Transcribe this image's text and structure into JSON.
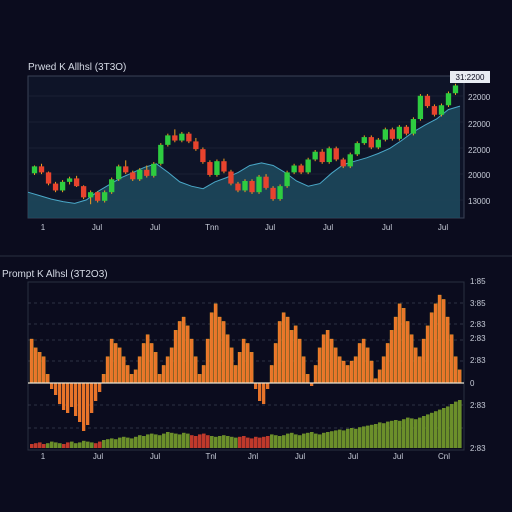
{
  "chart_data": [
    {
      "type": "candlestick",
      "title": "Prwed K Allhsl (3T3O)",
      "x_tick_labels": [
        "1",
        "Jul",
        "Jul",
        "Tnn",
        "Jul",
        "Jul",
        "Jul",
        "Jul"
      ],
      "y_tick_labels": [
        "3:2200",
        "22000",
        "22000",
        "22000",
        "20000",
        "13000"
      ],
      "current_price_label": "31:2200",
      "colors": {
        "up": "#2ecc40",
        "down": "#e8432e",
        "wick": "#f0a020",
        "area_fill": "#1d4a5e",
        "area_line": "#4aa8c8"
      },
      "area_series": [
        17000,
        16600,
        16200,
        15900,
        15700,
        16100,
        17100,
        17900,
        18700,
        19300,
        19900,
        20300,
        19300,
        18200,
        17700,
        17400,
        18200,
        18700,
        19300,
        20100,
        20400,
        20100,
        19300,
        18300,
        17700,
        18000,
        19200,
        20200,
        20600,
        21000,
        21500,
        22100,
        23000,
        24000,
        24800,
        25500,
        26600,
        27000
      ],
      "ohlc": [
        [
          19200,
          20100,
          19000,
          20000
        ],
        [
          20000,
          20300,
          19100,
          19300
        ],
        [
          19300,
          19400,
          17800,
          18000
        ],
        [
          18000,
          18200,
          17000,
          17200
        ],
        [
          17200,
          18400,
          17000,
          18200
        ],
        [
          18200,
          18800,
          17900,
          18600
        ],
        [
          18600,
          18900,
          17600,
          17700
        ],
        [
          17700,
          17800,
          16200,
          16400
        ],
        [
          16400,
          17200,
          15600,
          17000
        ],
        [
          17000,
          17100,
          15800,
          16000
        ],
        [
          16000,
          17200,
          15800,
          17000
        ],
        [
          17000,
          18700,
          16800,
          18500
        ],
        [
          18500,
          20200,
          18300,
          20000
        ],
        [
          20000,
          20700,
          19100,
          19300
        ],
        [
          19300,
          19500,
          18300,
          18500
        ],
        [
          18500,
          19800,
          18300,
          19600
        ],
        [
          19600,
          20100,
          18700,
          18900
        ],
        [
          18900,
          20500,
          18700,
          20300
        ],
        [
          20300,
          22700,
          20100,
          22500
        ],
        [
          22500,
          23800,
          22300,
          23600
        ],
        [
          23600,
          24300,
          22800,
          23000
        ],
        [
          23000,
          24000,
          22800,
          23800
        ],
        [
          23800,
          24000,
          22700,
          22900
        ],
        [
          22900,
          23300,
          21800,
          22000
        ],
        [
          22000,
          22200,
          20300,
          20500
        ],
        [
          20500,
          20700,
          18800,
          19000
        ],
        [
          19000,
          20800,
          18800,
          20600
        ],
        [
          20600,
          20900,
          19200,
          19400
        ],
        [
          19400,
          19600,
          17800,
          18000
        ],
        [
          18000,
          18200,
          17000,
          17200
        ],
        [
          17200,
          18500,
          17000,
          18300
        ],
        [
          18300,
          18500,
          16800,
          17000
        ],
        [
          17000,
          19000,
          16800,
          18800
        ],
        [
          18800,
          19100,
          17300,
          17500
        ],
        [
          17500,
          17700,
          16000,
          16200
        ],
        [
          16200,
          17900,
          16000,
          17700
        ],
        [
          17700,
          19500,
          17500,
          19300
        ],
        [
          19300,
          20300,
          19100,
          20100
        ],
        [
          20100,
          20300,
          19100,
          19300
        ],
        [
          19300,
          21000,
          19100,
          20800
        ],
        [
          20800,
          21900,
          20600,
          21700
        ],
        [
          21700,
          22000,
          20300,
          20500
        ],
        [
          20500,
          22300,
          20300,
          22100
        ],
        [
          22100,
          22300,
          20600,
          20800
        ],
        [
          20800,
          21000,
          19800,
          20000
        ],
        [
          20000,
          21600,
          19800,
          21400
        ],
        [
          21400,
          22900,
          21200,
          22700
        ],
        [
          22700,
          23600,
          22500,
          23400
        ],
        [
          23400,
          23600,
          22000,
          22200
        ],
        [
          22200,
          23300,
          22000,
          23100
        ],
        [
          23100,
          24500,
          22900,
          24300
        ],
        [
          24300,
          24500,
          23000,
          23200
        ],
        [
          23200,
          24800,
          23000,
          24600
        ],
        [
          24600,
          24800,
          23600,
          23800
        ],
        [
          23800,
          25700,
          23600,
          25500
        ],
        [
          25500,
          28400,
          25300,
          28200
        ],
        [
          28200,
          28400,
          26800,
          27000
        ],
        [
          27000,
          27200,
          25800,
          26000
        ],
        [
          26000,
          27300,
          25800,
          27100
        ],
        [
          27100,
          28700,
          26900,
          28500
        ],
        [
          28500,
          29600,
          28300,
          29400
        ]
      ]
    },
    {
      "type": "bar",
      "title": "Prompt K Alhsl (3T2O3)",
      "x_tick_labels": [
        "1",
        "Jul",
        "Jul",
        "Tnl",
        "Jnl",
        "Jul",
        "Jul",
        "Jul",
        "Jul",
        "Cnl"
      ],
      "y_tick_labels": [
        "1:85",
        "3:85",
        "2:83",
        "2:83",
        "2:83",
        "0",
        "2:83",
        "2:83"
      ],
      "colors": {
        "positive": "#e8742a",
        "positive_edge": "#f5b02a",
        "negative": "#e8742a",
        "volume_up": "#6b8f2a",
        "volume_down": "#c0392b"
      },
      "values": [
        0.5,
        0.4,
        0.35,
        0.3,
        0.1,
        -0.1,
        -0.2,
        -0.35,
        -0.45,
        -0.5,
        -0.4,
        -0.55,
        -0.65,
        -0.8,
        -0.7,
        -0.5,
        -0.3,
        -0.15,
        0.1,
        0.3,
        0.5,
        0.45,
        0.4,
        0.3,
        0.2,
        0.1,
        0.15,
        0.3,
        0.45,
        0.55,
        0.45,
        0.35,
        0.1,
        0.2,
        0.3,
        0.4,
        0.6,
        0.7,
        0.75,
        0.65,
        0.5,
        0.3,
        0.1,
        0.2,
        0.5,
        0.8,
        0.9,
        0.75,
        0.7,
        0.55,
        0.4,
        0.2,
        0.35,
        0.5,
        0.45,
        0.35,
        -0.1,
        -0.3,
        -0.35,
        -0.1,
        0.2,
        0.45,
        0.7,
        0.8,
        0.75,
        0.6,
        0.65,
        0.5,
        0.3,
        0.1,
        -0.05,
        0.2,
        0.4,
        0.55,
        0.6,
        0.5,
        0.4,
        0.3,
        0.25,
        0.2,
        0.25,
        0.3,
        0.45,
        0.5,
        0.4,
        0.25,
        0.05,
        0.15,
        0.3,
        0.45,
        0.6,
        0.75,
        0.9,
        0.85,
        0.7,
        0.55,
        0.4,
        0.3,
        0.5,
        0.65,
        0.8,
        0.9,
        1.0,
        0.95,
        0.75,
        0.55,
        0.3,
        0.15
      ],
      "volume": [
        0.05,
        0.06,
        0.07,
        0.05,
        0.06,
        0.08,
        0.07,
        0.06,
        0.05,
        0.07,
        0.08,
        0.06,
        0.07,
        0.09,
        0.08,
        0.07,
        0.06,
        0.08,
        0.1,
        0.11,
        0.12,
        0.11,
        0.13,
        0.14,
        0.13,
        0.12,
        0.14,
        0.16,
        0.15,
        0.17,
        0.18,
        0.17,
        0.16,
        0.18,
        0.2,
        0.19,
        0.18,
        0.17,
        0.19,
        0.18,
        0.16,
        0.15,
        0.17,
        0.18,
        0.16,
        0.15,
        0.14,
        0.15,
        0.16,
        0.15,
        0.14,
        0.13,
        0.14,
        0.15,
        0.13,
        0.12,
        0.14,
        0.13,
        0.14,
        0.15,
        0.17,
        0.16,
        0.15,
        0.16,
        0.18,
        0.19,
        0.17,
        0.16,
        0.18,
        0.19,
        0.2,
        0.18,
        0.17,
        0.19,
        0.2,
        0.21,
        0.22,
        0.23,
        0.22,
        0.24,
        0.25,
        0.24,
        0.26,
        0.27,
        0.28,
        0.29,
        0.3,
        0.32,
        0.31,
        0.33,
        0.34,
        0.35,
        0.34,
        0.36,
        0.38,
        0.37,
        0.36,
        0.38,
        0.4,
        0.42,
        0.44,
        0.46,
        0.48,
        0.5,
        0.52,
        0.55,
        0.58,
        0.6
      ],
      "volume_down_indices": [
        0,
        1,
        2,
        3,
        8,
        9,
        16,
        17,
        40,
        41,
        42,
        43,
        44,
        52,
        53,
        54,
        55,
        56,
        57,
        58,
        59
      ]
    }
  ]
}
